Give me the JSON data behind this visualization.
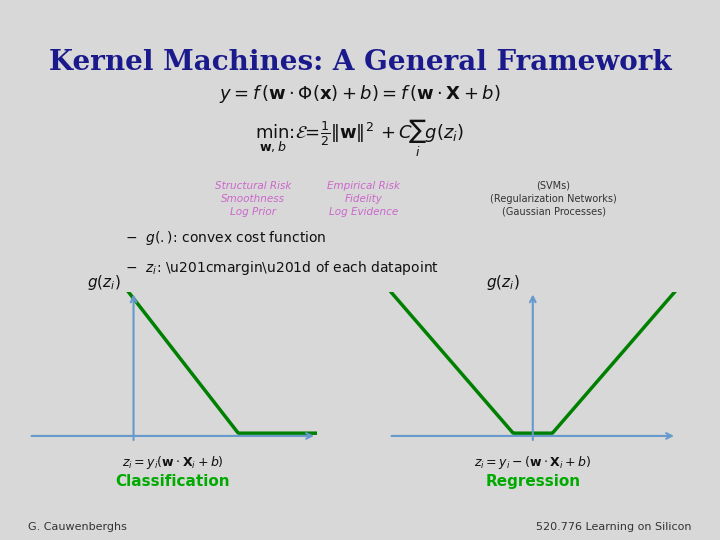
{
  "title": "Kernel Machines: A General Framework",
  "title_color": "#1a1a8c",
  "title_fontsize": 20,
  "bg_color": "#d8d8d8",
  "slide_bg": "#f0f0f0",
  "eq1": "$y = f(\\mathbf{w} \\cdot \\Phi(\\mathbf{x}) + b) = f(\\mathbf{w} \\cdot \\mathbf{X} + b)$",
  "eq2": "$\\min_{\\mathbf{w},b} : \\mathcal{E} = \\frac{1}{2}\\|\\mathbf{w}\\|^2 + C\\sum_i g(z_i)$",
  "struct_risk_lines": [
    "Structural Risk",
    "Smoothness",
    "Log Prior"
  ],
  "empirical_risk_lines": [
    "Empirical Risk",
    "Fidelity",
    "Log Evidence"
  ],
  "svms_lines": [
    "(SVMs)",
    "(Regularization Networks)",
    "(Gaussian Processes)"
  ],
  "bullet1": "$-\\ g(.)$: convex cost function",
  "bullet2": "$-\\ z_i$: “margin” of each datapoint",
  "ylabel_left": "$g(z_i)$",
  "ylabel_right": "$g(z_i)$",
  "xlabel_left": "$z_i = y_i(\\mathbf{w} \\cdot \\mathbf{X}_i + b)$",
  "xlabel_right": "$z_i = y_i - (\\mathbf{w} \\cdot \\mathbf{X}_i + b)$",
  "label_left": "Classification",
  "label_right": "Regression",
  "curve_color": "#008000",
  "axis_color": "#6699cc",
  "footer_left": "G. Cauwenberghs",
  "footer_right": "520.776 Learning on Silicon",
  "struct_color": "#cc66cc",
  "empirical_color": "#cc66cc",
  "svms_color": "#333333"
}
